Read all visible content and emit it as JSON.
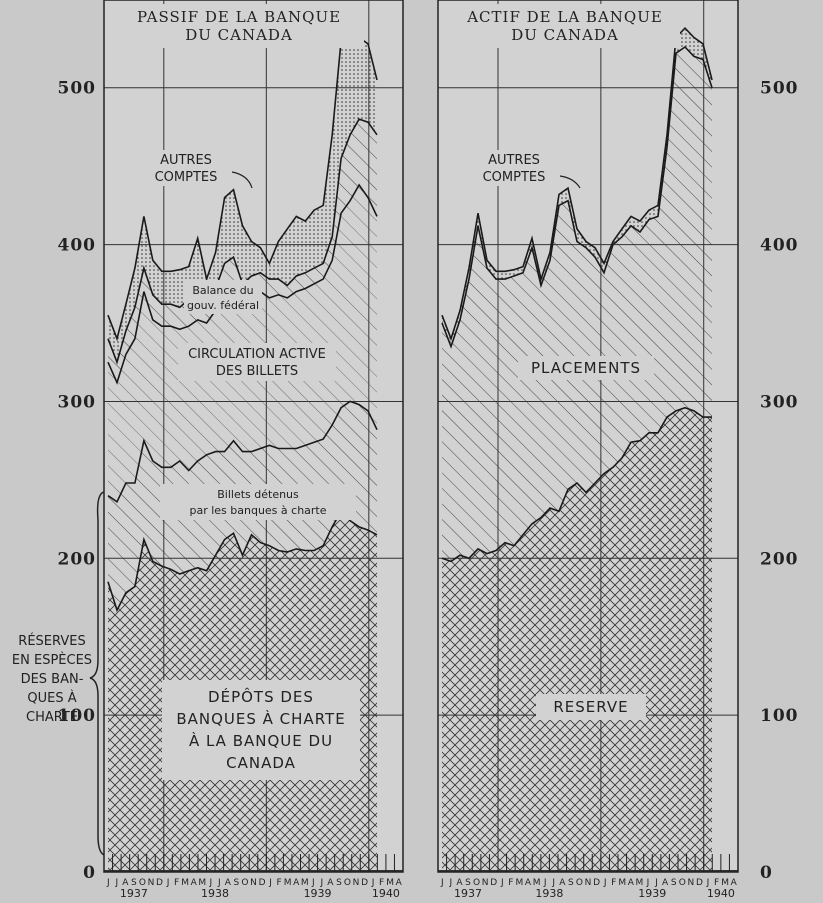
{
  "chart_data": [
    {
      "type": "area",
      "title": "PASSIF DE LA BANQUE DU CANADA",
      "title_lines": [
        "PASSIF DE LA BANQUE",
        "DU CANADA"
      ],
      "y_ticks": [
        "0",
        "100",
        "200",
        "300",
        "400",
        "500"
      ],
      "ylim": [
        0,
        540
      ],
      "month_labels": [
        "J",
        "J",
        "A",
        "S",
        "O",
        "N",
        "D",
        "J",
        "F",
        "M",
        "A",
        "M",
        "J",
        "J",
        "A",
        "S",
        "O",
        "N",
        "D",
        "J",
        "F",
        "M",
        "A",
        "M",
        "J",
        "J",
        "A",
        "S",
        "O",
        "N",
        "D",
        "J",
        "F",
        "M",
        "A"
      ],
      "year_labels": [
        "1937",
        "1938",
        "1939",
        "1940"
      ],
      "series": [
        {
          "name": "Dépôts des banques à charte à la Banque du Canada",
          "values": [
            185,
            167,
            178,
            182,
            212,
            198,
            195,
            193,
            190,
            192,
            194,
            192,
            202,
            212,
            216,
            202,
            215,
            210,
            208,
            205,
            204,
            206,
            205,
            205,
            208,
            220,
            230,
            224,
            220,
            218,
            215
          ]
        },
        {
          "name": "Billets détenus par les banques à charte",
          "values": [
            240,
            236,
            248,
            248,
            275,
            262,
            258,
            258,
            262,
            256,
            262,
            266,
            268,
            268,
            275,
            268,
            268,
            270,
            272,
            270,
            270,
            270,
            272,
            274,
            276,
            285,
            296,
            300,
            298,
            294,
            282
          ]
        },
        {
          "name": "Circulation active des billets",
          "values": [
            325,
            312,
            330,
            340,
            370,
            352,
            348,
            348,
            346,
            348,
            352,
            350,
            358,
            368,
            372,
            362,
            368,
            370,
            366,
            368,
            366,
            370,
            372,
            375,
            378,
            390,
            420,
            428,
            438,
            430,
            418
          ]
        },
        {
          "name": "Balance du gouv. fédéral",
          "values": [
            340,
            325,
            345,
            360,
            385,
            368,
            362,
            362,
            360,
            365,
            372,
            365,
            372,
            388,
            392,
            375,
            380,
            382,
            378,
            378,
            374,
            380,
            382,
            385,
            388,
            405,
            455,
            470,
            480,
            478,
            470
          ]
        },
        {
          "name": "Autres comptes",
          "values": [
            355,
            340,
            362,
            385,
            418,
            390,
            383,
            383,
            384,
            386,
            404,
            378,
            395,
            430,
            435,
            412,
            402,
            398,
            388,
            402,
            410,
            418,
            415,
            422,
            425,
            470,
            530,
            538,
            532,
            528,
            505
          ]
        }
      ],
      "labels": {
        "autres": [
          "AUTRES",
          "COMPTES"
        ],
        "balance": [
          "Balance du",
          "gouv. fédéral"
        ],
        "circulation": [
          "CIRCULATION ACTIVE",
          "DES BILLETS"
        ],
        "billets": [
          "Billets détenus",
          "par les banques à charte"
        ],
        "depots": [
          "DÉPÔTS DES",
          "BANQUES À CHARTE",
          "À LA BANQUE DU",
          "CANADA"
        ],
        "reserves": [
          "RÉSERVES",
          "EN ESPÈCES",
          "DES BAN-",
          "QUES À",
          "CHARTE"
        ]
      }
    },
    {
      "type": "area",
      "title": "ACTIF DE LA BANQUE DU CANADA",
      "title_lines": [
        "ACTIF DE LA BANQUE",
        "DU CANADA"
      ],
      "y_ticks": [
        "0",
        "100",
        "200",
        "300",
        "400",
        "500"
      ],
      "ylim": [
        0,
        540
      ],
      "month_labels": [
        "J",
        "J",
        "A",
        "S",
        "O",
        "N",
        "D",
        "J",
        "F",
        "M",
        "A",
        "M",
        "J",
        "J",
        "A",
        "S",
        "O",
        "N",
        "D",
        "J",
        "F",
        "M",
        "A",
        "M",
        "J",
        "J",
        "A",
        "S",
        "O",
        "N",
        "D",
        "J",
        "F",
        "M",
        "A"
      ],
      "year_labels": [
        "1937",
        "1938",
        "1939",
        "1940"
      ],
      "series": [
        {
          "name": "Réserve",
          "values": [
            200,
            198,
            202,
            200,
            206,
            203,
            205,
            210,
            208,
            215,
            222,
            226,
            232,
            230,
            244,
            248,
            242,
            248,
            254,
            258,
            264,
            274,
            275,
            280,
            280,
            290,
            294,
            296,
            294,
            290,
            290
          ]
        },
        {
          "name": "Placements",
          "values": [
            350,
            335,
            352,
            378,
            412,
            385,
            378,
            378,
            380,
            382,
            398,
            374,
            390,
            425,
            428,
            402,
            398,
            392,
            382,
            400,
            405,
            412,
            408,
            416,
            418,
            462,
            522,
            526,
            520,
            518,
            500
          ]
        },
        {
          "name": "Autres comptes",
          "values": [
            355,
            340,
            358,
            385,
            420,
            390,
            383,
            383,
            384,
            386,
            404,
            378,
            395,
            432,
            436,
            410,
            402,
            398,
            388,
            402,
            410,
            418,
            415,
            422,
            425,
            470,
            532,
            538,
            532,
            528,
            505
          ]
        }
      ],
      "labels": {
        "autres": [
          "AUTRES",
          "COMPTES"
        ],
        "placements": "PLACEMENTS",
        "reserve": "RESERVE"
      }
    }
  ]
}
